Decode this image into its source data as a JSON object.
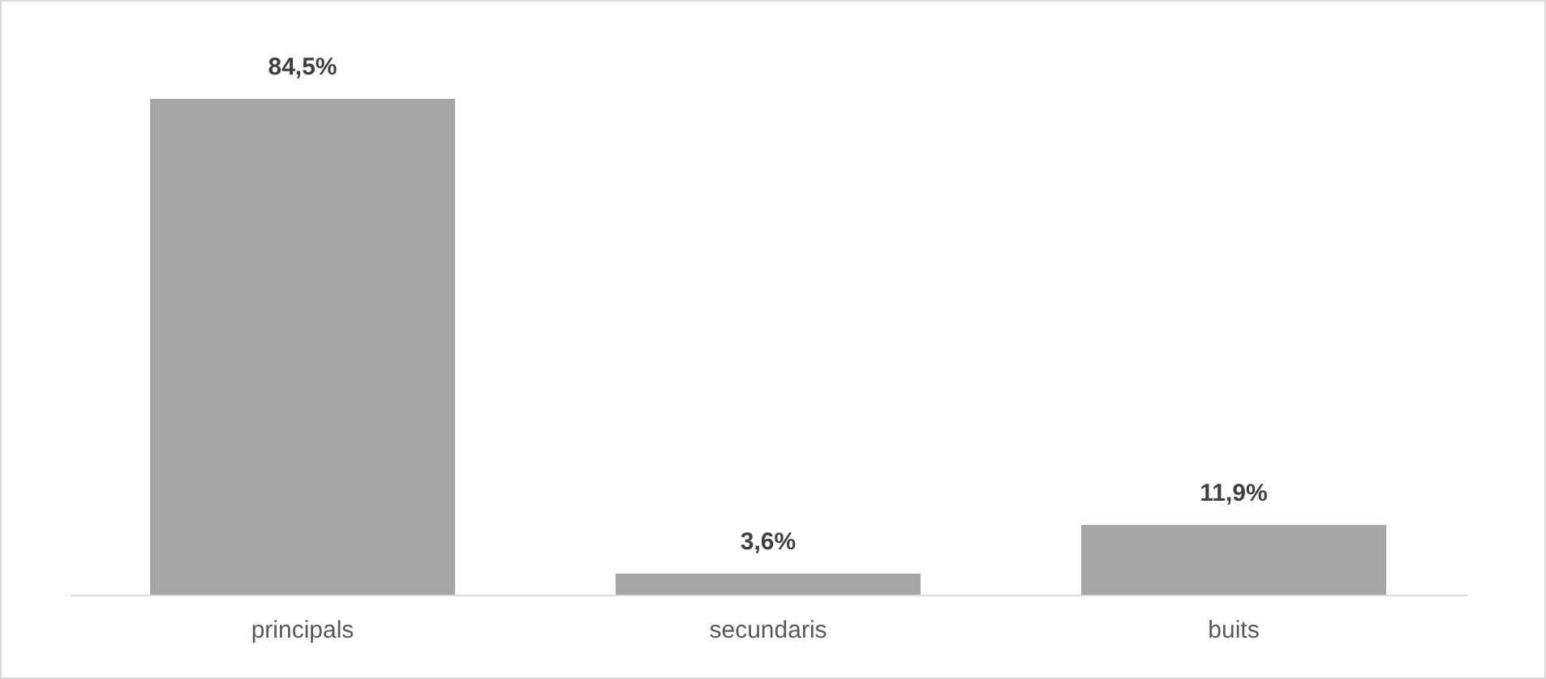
{
  "chart_data": {
    "type": "bar",
    "categories": [
      "principals",
      "secundaris",
      "buits"
    ],
    "values": [
      84.5,
      3.6,
      11.9
    ],
    "color": "#a5a5a5",
    "value_labels": [
      "84,5%",
      "3,6%",
      "11,9%"
    ]
  }
}
